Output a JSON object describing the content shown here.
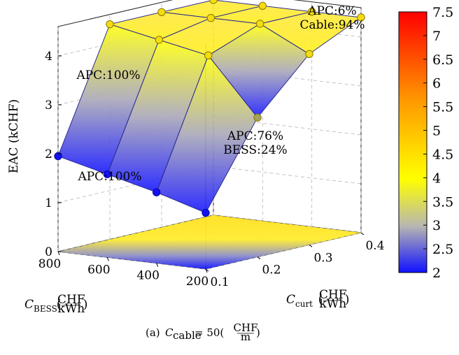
{
  "chart_data": {
    "type": "surface",
    "caption": "(a) C_cable = 50(CHF/m)",
    "caption_parts": {
      "prefix": "(a) ",
      "symbol": "C",
      "sub": "cable",
      "eq": " = 50(",
      "num": "CHF",
      "den": "m",
      "close": ")"
    },
    "xlabel": {
      "symbol": "C",
      "sub": "BESS",
      "num": "CHF",
      "den": "kWh"
    },
    "ylabel": {
      "symbol": "C",
      "sub": "curt",
      "num": "CHF",
      "den": "kWh"
    },
    "zlabel": "EAC (kCHF)",
    "x_ticks": [
      "200",
      "400",
      "600",
      "800"
    ],
    "y_ticks": [
      "0.1",
      "0.2",
      "0.3",
      "0.4"
    ],
    "z_ticks": [
      "0",
      "1",
      "2",
      "3",
      "4"
    ],
    "xlim": [
      200,
      800
    ],
    "ylim": [
      0.1,
      0.4
    ],
    "zlim": [
      0,
      4.5
    ],
    "colorbar": {
      "ticks": [
        "2",
        "2.5",
        "3",
        "3.5",
        "4",
        "4.5",
        "5",
        "5.5",
        "6",
        "6.5",
        "7",
        "7.5"
      ],
      "min": 2,
      "max": 7.5,
      "colors": [
        "#1010ff",
        "#b8b8b0",
        "#ffff00",
        "#ff9900",
        "#ff0000"
      ]
    },
    "grid": true,
    "points": [
      {
        "c_bess": 200,
        "c_curt": 0.1,
        "eac": 1.15
      },
      {
        "c_bess": 400,
        "c_curt": 0.1,
        "eac": 1.45
      },
      {
        "c_bess": 600,
        "c_curt": 0.1,
        "eac": 1.7
      },
      {
        "c_bess": 800,
        "c_curt": 0.1,
        "eac": 1.95
      },
      {
        "c_bess": 200,
        "c_curt": 0.2,
        "eac": 2.85
      },
      {
        "c_bess": 200,
        "c_curt": 0.3,
        "eac": 3.9
      },
      {
        "c_bess": 200,
        "c_curt": 0.4,
        "eac": 4.4
      },
      {
        "c_bess": 400,
        "c_curt": 0.2,
        "eac": 4.0
      },
      {
        "c_bess": 400,
        "c_curt": 0.3,
        "eac": 4.4
      },
      {
        "c_bess": 400,
        "c_curt": 0.4,
        "eac": 4.4
      },
      {
        "c_bess": 600,
        "c_curt": 0.2,
        "eac": 4.2
      },
      {
        "c_bess": 600,
        "c_curt": 0.3,
        "eac": 4.4
      },
      {
        "c_bess": 600,
        "c_curt": 0.4,
        "eac": 4.4
      },
      {
        "c_bess": 800,
        "c_curt": 0.2,
        "eac": 4.4
      },
      {
        "c_bess": 800,
        "c_curt": 0.3,
        "eac": 4.4
      },
      {
        "c_bess": 800,
        "c_curt": 0.4,
        "eac": 4.4
      }
    ],
    "annotations": [
      {
        "line1": "APC:6%",
        "line2": "Cable:94%"
      },
      {
        "line1": "APC:100%",
        "line2": ""
      },
      {
        "line1": "APC:76%",
        "line2": "BESS:24%"
      },
      {
        "line1": "APC:100%",
        "line2": ""
      }
    ]
  }
}
